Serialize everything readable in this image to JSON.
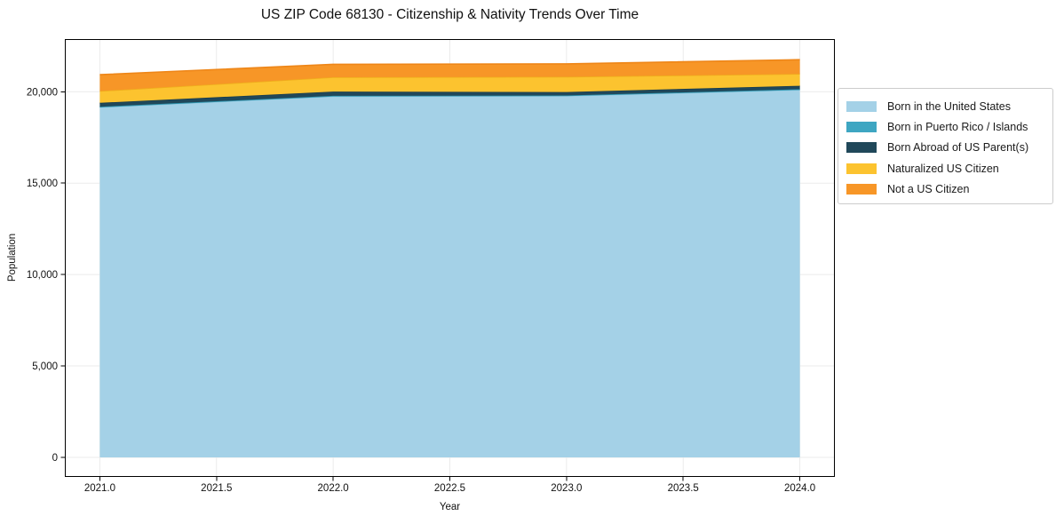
{
  "chart_data": {
    "type": "area",
    "stacked": true,
    "title": "US ZIP Code 68130 - Citizenship & Nativity Trends Over Time",
    "xlabel": "Year",
    "ylabel": "Population",
    "x": [
      2021,
      2022,
      2023,
      2024
    ],
    "series": [
      {
        "name": "Born in the United States",
        "color": "#a4d1e7",
        "edge": "#8ec6de",
        "values": [
          19150,
          19750,
          19770,
          20100
        ]
      },
      {
        "name": "Born in Puerto Rico / Islands",
        "color": "#3ea6c2",
        "edge": "#2f97b1",
        "values": [
          30,
          25,
          25,
          35
        ]
      },
      {
        "name": "Born Abroad of US Parent(s)",
        "color": "#20485a",
        "edge": "#1a3d4d",
        "values": [
          210,
          235,
          190,
          190
        ]
      },
      {
        "name": "Naturalized US Citizen",
        "color": "#fcc32f",
        "edge": "#efae1c",
        "values": [
          650,
          780,
          830,
          650
        ]
      },
      {
        "name": "Not a US Citizen",
        "color": "#f79627",
        "edge": "#ee8618",
        "values": [
          890,
          710,
          710,
          780
        ]
      }
    ],
    "xticks": [
      2021.0,
      2021.5,
      2022.0,
      2022.5,
      2023.0,
      2023.5,
      2024.0
    ],
    "yticks": [
      0,
      5000,
      10000,
      15000,
      20000
    ],
    "xlim": [
      2020.85,
      2024.15
    ],
    "ylim": [
      -1070,
      22880
    ],
    "grid": true,
    "grid_color": "#ebebeb",
    "legend_position": "right"
  }
}
